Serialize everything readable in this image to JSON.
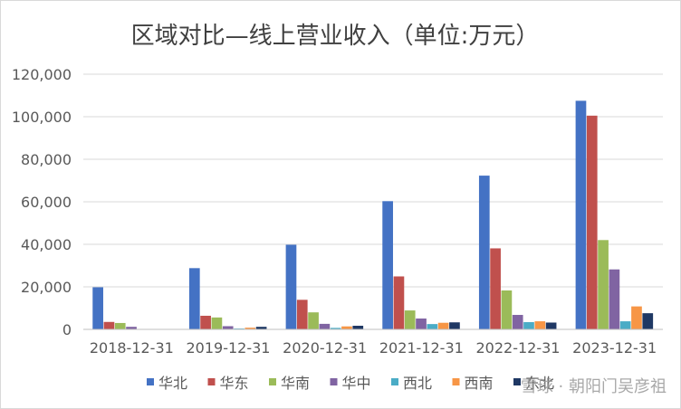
{
  "chart_data": {
    "type": "bar",
    "title": "区域对比—线上营业收入（单位:万元）",
    "xlabel": "",
    "ylabel": "",
    "ylim": [
      0,
      120000
    ],
    "yticks": [
      "0",
      "20,000",
      "40,000",
      "60,000",
      "80,000",
      "100,000",
      "120,000"
    ],
    "grid": true,
    "legend_position": "bottom",
    "categories": [
      "2018-12-31",
      "2019-12-31",
      "2020-12-31",
      "2021-12-31",
      "2022-12-31",
      "2023-12-31"
    ],
    "series": [
      {
        "name": "华北",
        "color": "#4472C4",
        "values": [
          19800,
          28800,
          39800,
          60300,
          72300,
          107500
        ]
      },
      {
        "name": "华东",
        "color": "#C0504D",
        "values": [
          3500,
          6400,
          13900,
          24900,
          38100,
          100500
        ]
      },
      {
        "name": "华南",
        "color": "#9BBB59",
        "values": [
          3000,
          5600,
          8000,
          8900,
          18300,
          42000
        ]
      },
      {
        "name": "华中",
        "color": "#8064A2",
        "values": [
          1200,
          1500,
          2600,
          5100,
          6800,
          28200
        ]
      },
      {
        "name": "西北",
        "color": "#4BACC6",
        "values": [
          0,
          400,
          700,
          2500,
          3400,
          3800
        ]
      },
      {
        "name": "西南",
        "color": "#F79646",
        "values": [
          0,
          800,
          1400,
          3100,
          3800,
          10800
        ]
      },
      {
        "name": "东北",
        "color": "#1F3864",
        "values": [
          0,
          1200,
          1700,
          3300,
          3200,
          7600
        ]
      }
    ]
  },
  "watermark": "雪球 · 朝阳门吴彦祖"
}
